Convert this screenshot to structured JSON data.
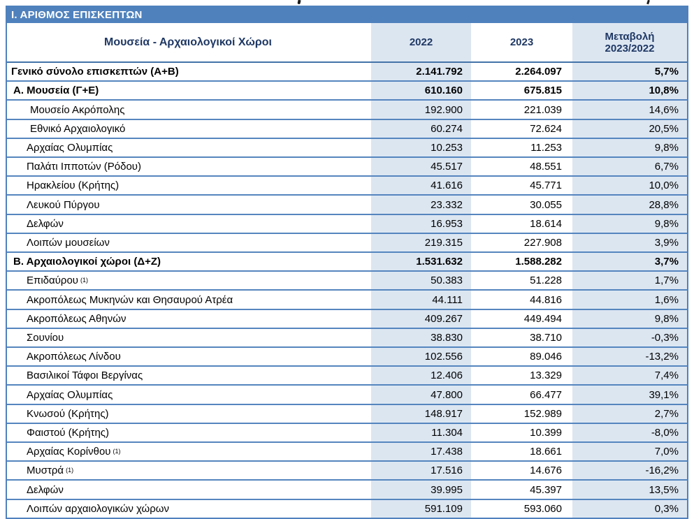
{
  "page": {
    "section_title": "Ι. ΑΡΙΘΜΟΣ ΕΠΙΣΚΕΠΤΩΝ"
  },
  "colors": {
    "header_bar_blue": "#4F81BD",
    "light_cell_blue": "#DCE6F1",
    "grid_blue": "#5585BE",
    "header_text_navy": "#1F3864"
  },
  "table": {
    "headers": {
      "col1": "Μουσεία - Αρχαιολογικοί Χώροι",
      "col2": "2022",
      "col3": "2023",
      "col4_line1": "Μεταβολή",
      "col4_line2": "2023/2022"
    },
    "rows": [
      {
        "label": "Γενικό σύνολο επισκεπτών (Α+Β)",
        "sup": "",
        "v2022": "2.141.792",
        "v2023": "2.264.097",
        "change": "5,7%",
        "style": "total"
      },
      {
        "label": "Α. Μουσεία (Γ+Ε)",
        "sup": "",
        "v2022": "610.160",
        "v2023": "675.815",
        "change": "10,8%",
        "style": "section"
      },
      {
        "label": "Μουσείο Ακρόπολης",
        "sup": "",
        "v2022": "192.900",
        "v2023": "221.039",
        "change": "14,6%",
        "style": "item2"
      },
      {
        "label": "Εθνικό Αρχαιολογικό",
        "sup": "",
        "v2022": "60.274",
        "v2023": "72.624",
        "change": "20,5%",
        "style": "item2"
      },
      {
        "label": "Αρχαίας Ολυμπίας",
        "sup": "",
        "v2022": "10.253",
        "v2023": "11.253",
        "change": "9,8%",
        "style": "item"
      },
      {
        "label": "Παλάτι Ιπποτών (Ρόδου)",
        "sup": "",
        "v2022": "45.517",
        "v2023": "48.551",
        "change": "6,7%",
        "style": "item"
      },
      {
        "label": "Ηρακλείου (Κρήτης)",
        "sup": "",
        "v2022": "41.616",
        "v2023": "45.771",
        "change": "10,0%",
        "style": "item"
      },
      {
        "label": "Λευκού Πύργου",
        "sup": "",
        "v2022": "23.332",
        "v2023": "30.055",
        "change": "28,8%",
        "style": "item"
      },
      {
        "label": "Δελφών",
        "sup": "",
        "v2022": "16.953",
        "v2023": "18.614",
        "change": "9,8%",
        "style": "item"
      },
      {
        "label": "Λοιπών μουσείων",
        "sup": "",
        "v2022": "219.315",
        "v2023": "227.908",
        "change": "3,9%",
        "style": "item"
      },
      {
        "label": "Β. Αρχαιολογικοί χώροι (Δ+Ζ)",
        "sup": "",
        "v2022": "1.531.632",
        "v2023": "1.588.282",
        "change": "3,7%",
        "style": "section"
      },
      {
        "label": "Επιδαύρου",
        "sup": "(1)",
        "v2022": "50.383",
        "v2023": "51.228",
        "change": "1,7%",
        "style": "item"
      },
      {
        "label": "Ακροπόλεως Μυκηνών και Θησαυρού Ατρέα",
        "sup": "",
        "v2022": "44.111",
        "v2023": "44.816",
        "change": "1,6%",
        "style": "item"
      },
      {
        "label": "Ακροπόλεως Αθηνών",
        "sup": "",
        "v2022": "409.267",
        "v2023": "449.494",
        "change": "9,8%",
        "style": "item"
      },
      {
        "label": "Σουνίου",
        "sup": "",
        "v2022": "38.830",
        "v2023": "38.710",
        "change": "-0,3%",
        "style": "item"
      },
      {
        "label": "Ακροπόλεως Λίνδου",
        "sup": "",
        "v2022": "102.556",
        "v2023": "89.046",
        "change": "-13,2%",
        "style": "item"
      },
      {
        "label": "Βασιλικοί Τάφοι Βεργίνας",
        "sup": "",
        "v2022": "12.406",
        "v2023": "13.329",
        "change": "7,4%",
        "style": "item"
      },
      {
        "label": "Αρχαίας Ολυμπίας",
        "sup": "",
        "v2022": "47.800",
        "v2023": "66.477",
        "change": "39,1%",
        "style": "item"
      },
      {
        "label": "Κνωσού (Κρήτης)",
        "sup": "",
        "v2022": "148.917",
        "v2023": "152.989",
        "change": "2,7%",
        "style": "item"
      },
      {
        "label": "Φαιστού (Κρήτης)",
        "sup": "",
        "v2022": "11.304",
        "v2023": "10.399",
        "change": "-8,0%",
        "style": "item"
      },
      {
        "label": "Αρχαίας Κορίνθου",
        "sup": "(1)",
        "v2022": "17.438",
        "v2023": "18.661",
        "change": "7,0%",
        "style": "item"
      },
      {
        "label": "Μυστρά",
        "sup": "(1)",
        "v2022": "17.516",
        "v2023": "14.676",
        "change": "-16,2%",
        "style": "item"
      },
      {
        "label": "Δελφών",
        "sup": "",
        "v2022": "39.995",
        "v2023": "45.397",
        "change": "13,5%",
        "style": "item"
      },
      {
        "label": "Λοιπών αρχαιολογικών χώρων",
        "sup": "",
        "v2022": "591.109",
        "v2023": "593.060",
        "change": "0,3%",
        "style": "item"
      }
    ]
  }
}
